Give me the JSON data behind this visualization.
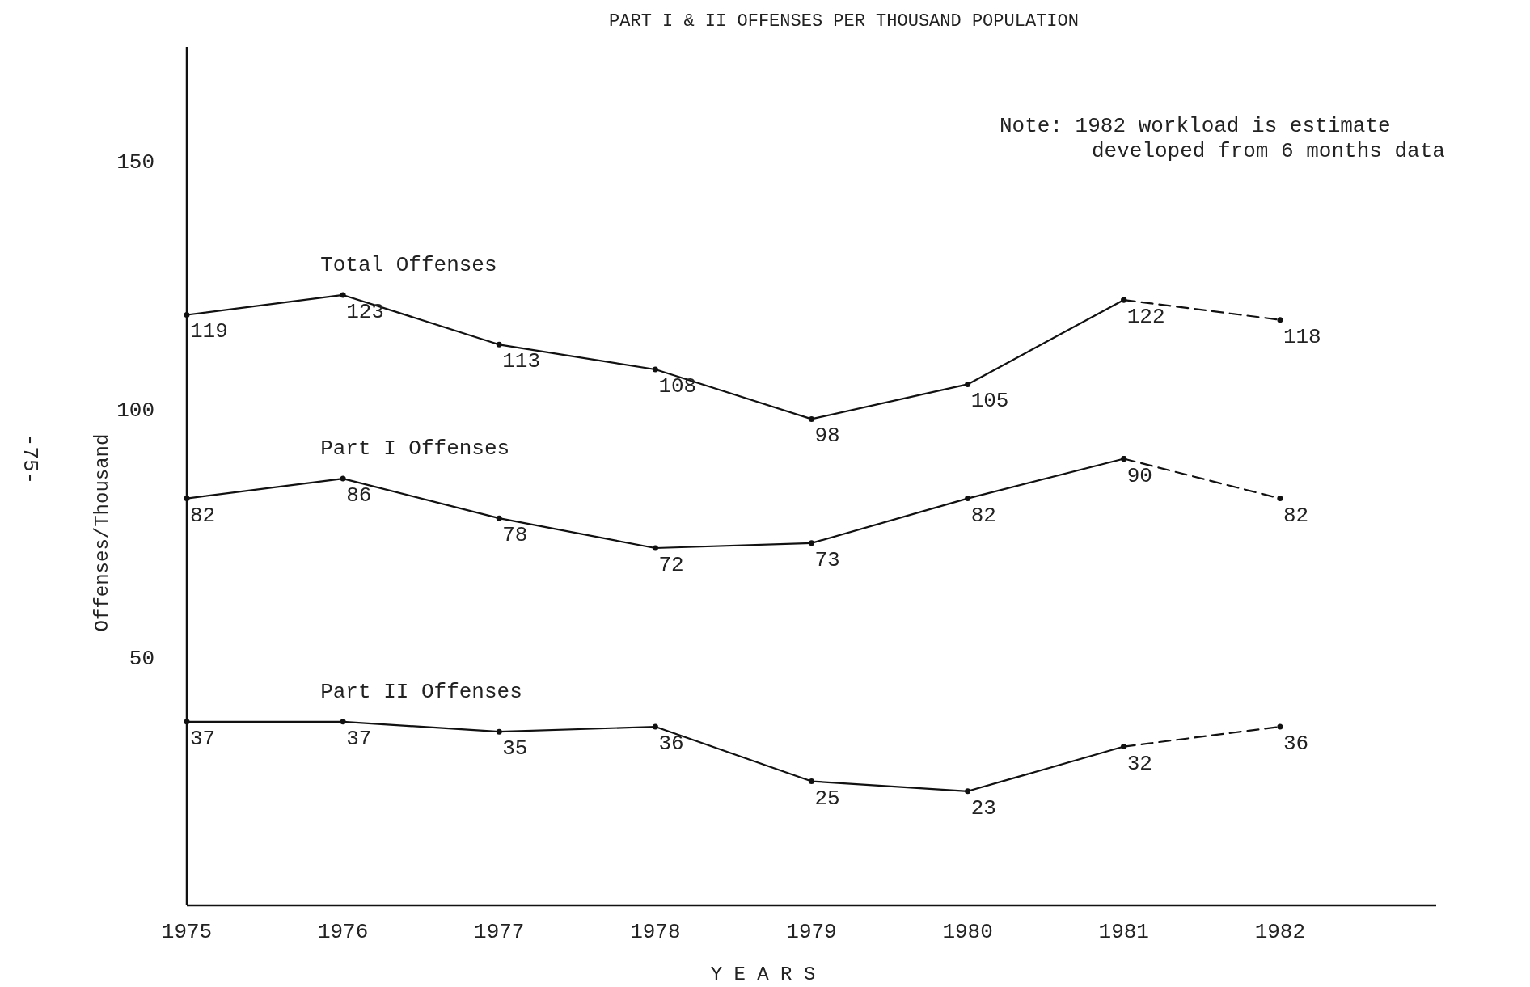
{
  "chart_data": {
    "type": "line",
    "title": "PART I & II OFFENSES PER THOUSAND POPULATION",
    "xlabel": "Y E A R S",
    "ylabel": "Offenses/Thousand",
    "x": [
      1975,
      1976,
      1977,
      1978,
      1979,
      1980,
      1981,
      1982
    ],
    "series": [
      {
        "name": "Total Offenses",
        "color": "#111111",
        "values": [
          119,
          123,
          113,
          108,
          98,
          105,
          122,
          null
        ],
        "value_labels": [
          "119",
          "123",
          "113",
          "108",
          "98",
          "105",
          "122",
          null
        ]
      },
      {
        "color": "#111111",
        "values": [
          null,
          null,
          null,
          null,
          null,
          null,
          122,
          118
        ],
        "line_style": "dashed",
        "value_labels": [
          null,
          null,
          null,
          null,
          null,
          null,
          null,
          "118"
        ]
      },
      {
        "name": "Part I Offenses",
        "color": "#111111",
        "values": [
          82,
          86,
          78,
          72,
          73,
          82,
          90,
          null
        ],
        "value_labels": [
          "82",
          "86",
          "78",
          "72",
          "73",
          "82",
          "90",
          null
        ]
      },
      {
        "color": "#111111",
        "values": [
          null,
          null,
          null,
          null,
          null,
          null,
          90,
          82
        ],
        "line_style": "dashed",
        "value_labels": [
          null,
          null,
          null,
          null,
          null,
          null,
          null,
          "82"
        ]
      },
      {
        "name": "Part II Offenses",
        "color": "#111111",
        "values": [
          37,
          37,
          35,
          36,
          25,
          23,
          32,
          null
        ],
        "value_labels": [
          "37",
          "37",
          "35",
          "36",
          "25",
          "23",
          "32",
          null
        ]
      },
      {
        "color": "#111111",
        "values": [
          null,
          null,
          null,
          null,
          null,
          null,
          32,
          36
        ],
        "line_style": "dashed",
        "value_labels": [
          null,
          null,
          null,
          null,
          null,
          null,
          null,
          "36"
        ]
      }
    ],
    "xlim": [
      1975,
      1983
    ],
    "xticks": [
      1975,
      1976,
      1977,
      1978,
      1979,
      1980,
      1981,
      1982
    ],
    "ylim": [
      0,
      173
    ],
    "yticks": [
      50,
      100,
      150
    ],
    "marker": "circle",
    "line_style": "solid",
    "grid": false,
    "annotations": [
      "Note: 1982 workload is estimate\ndeveloped from 6 months data",
      "-75-"
    ]
  }
}
